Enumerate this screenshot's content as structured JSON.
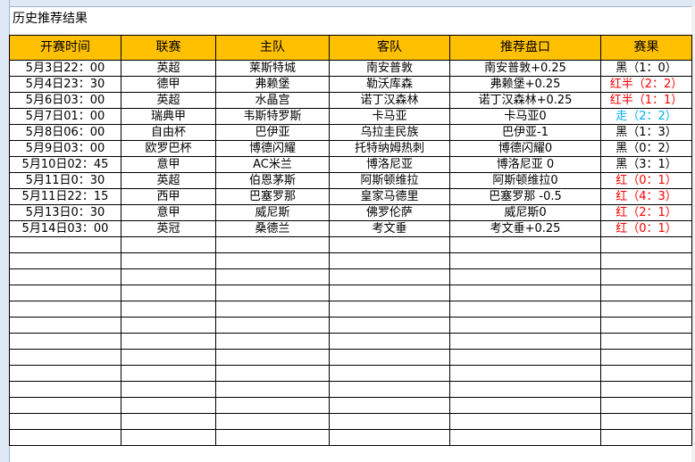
{
  "title": "历史推荐结果",
  "headers": [
    "开赛时间",
    "联赛",
    "主队",
    "客队",
    "推荐盘口",
    "赛果"
  ],
  "rows": [
    [
      "5月3日22：00",
      "英超",
      "莱斯特城",
      "南安普敦",
      "南安普敦+0.25",
      "黑（1：0）",
      "black"
    ],
    [
      "5月4日23：30",
      "德甲",
      "弗赖堡",
      "勒沃库森",
      "弗赖堡+0.25",
      "红半（2：2）",
      "red"
    ],
    [
      "5月6日03：00",
      "英超",
      "水晶宫",
      "诺丁汉森林",
      "诺丁汉森林+0.25",
      "红半（1：1）",
      "red"
    ],
    [
      "5月7日01：00",
      "瑞典甲",
      "韦斯特罗斯",
      "卡马亚",
      "卡马亚0",
      "走（2：2）",
      "blue"
    ],
    [
      "5月8日06：00",
      "自由杯",
      "巴伊亚",
      "乌拉圭民族",
      "巴伊亚-1",
      "黑（1：3）",
      "black"
    ],
    [
      "5月9日03：00",
      "欧罗巴杯",
      "博德闪耀",
      "托特纳姆热刺",
      "博德闪耀0",
      "黑（0：2）",
      "black"
    ],
    [
      "5月10日02：45",
      "意甲",
      "AC米兰",
      "博洛尼亚",
      "博洛尼亚 0",
      "黑（3：1）",
      "black"
    ],
    [
      "5月11日0：30",
      "英超",
      "伯恩茅斯",
      "阿斯顿维拉",
      "阿斯顿维拉0",
      "红（0：1）",
      "red"
    ],
    [
      "5月11日22：15",
      "西甲",
      "巴塞罗那",
      "皇家马德里",
      "巴塞罗那 -0.5",
      "红（4：3）",
      "red"
    ],
    [
      "5月13日0：30",
      "意甲",
      "威尼斯",
      "佛罗伦萨",
      "威尼斯0",
      "红（2：1）",
      "red"
    ],
    [
      "5月14日03：00",
      "英冠",
      "桑德兰",
      "考文垂",
      "考文垂+0.25",
      "红（0：1）",
      "red"
    ]
  ]
}
